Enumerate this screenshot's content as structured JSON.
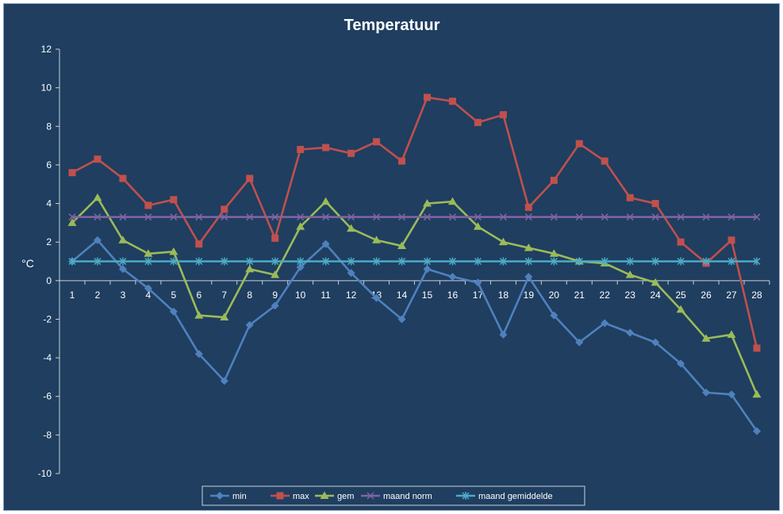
{
  "chart_data": {
    "type": "line",
    "title": "Temperatuur",
    "ylabel": "°C",
    "xlabel": "",
    "ylim": [
      -10,
      12
    ],
    "yticks": [
      -10,
      -8,
      -6,
      -4,
      -2,
      0,
      2,
      4,
      6,
      8,
      10,
      12
    ],
    "categories": [
      "1",
      "2",
      "3",
      "4",
      "5",
      "6",
      "7",
      "8",
      "9",
      "10",
      "11",
      "12",
      "13",
      "14",
      "15",
      "16",
      "17",
      "18",
      "19",
      "20",
      "21",
      "22",
      "23",
      "24",
      "25",
      "26",
      "27",
      "28"
    ],
    "grid": false,
    "legend_position": "bottom",
    "series": [
      {
        "name": "min",
        "color": "#4f81bd",
        "marker": "diamond",
        "values": [
          1.0,
          2.1,
          0.6,
          -0.4,
          -1.6,
          -3.8,
          -5.2,
          -2.3,
          -1.3,
          0.7,
          1.9,
          0.4,
          -0.9,
          -2.0,
          0.6,
          0.2,
          -0.1,
          -2.8,
          0.2,
          -1.8,
          -3.2,
          -2.2,
          -2.7,
          -3.2,
          -4.3,
          -5.8,
          -5.9,
          -7.8
        ]
      },
      {
        "name": "max",
        "color": "#c0504d",
        "marker": "square",
        "values": [
          5.6,
          6.3,
          5.3,
          3.9,
          4.2,
          1.9,
          3.7,
          5.3,
          2.2,
          6.8,
          6.9,
          6.6,
          7.2,
          6.2,
          9.5,
          9.3,
          8.2,
          8.6,
          3.8,
          5.2,
          7.1,
          6.2,
          4.3,
          4.0,
          2.0,
          0.9,
          2.1,
          -3.5
        ]
      },
      {
        "name": "gem",
        "color": "#9bbb59",
        "marker": "triangle",
        "values": [
          3.0,
          4.3,
          2.1,
          1.4,
          1.5,
          -1.8,
          -1.9,
          0.6,
          0.3,
          2.8,
          4.1,
          2.7,
          2.1,
          1.8,
          4.0,
          4.1,
          2.8,
          2.0,
          1.7,
          1.4,
          1.0,
          0.9,
          0.3,
          -0.1,
          -1.5,
          -3.0,
          -2.8,
          -5.9
        ]
      },
      {
        "name": "maand norm",
        "color": "#8064a2",
        "marker": "x",
        "values": [
          3.3,
          3.3,
          3.3,
          3.3,
          3.3,
          3.3,
          3.3,
          3.3,
          3.3,
          3.3,
          3.3,
          3.3,
          3.3,
          3.3,
          3.3,
          3.3,
          3.3,
          3.3,
          3.3,
          3.3,
          3.3,
          3.3,
          3.3,
          3.3,
          3.3,
          3.3,
          3.3,
          3.3
        ]
      },
      {
        "name": "maand gemiddelde",
        "color": "#4bacc6",
        "marker": "star",
        "values": [
          1.0,
          1.0,
          1.0,
          1.0,
          1.0,
          1.0,
          1.0,
          1.0,
          1.0,
          1.0,
          1.0,
          1.0,
          1.0,
          1.0,
          1.0,
          1.0,
          1.0,
          1.0,
          1.0,
          1.0,
          1.0,
          1.0,
          1.0,
          1.0,
          1.0,
          1.0,
          1.0,
          1.0
        ]
      }
    ]
  }
}
